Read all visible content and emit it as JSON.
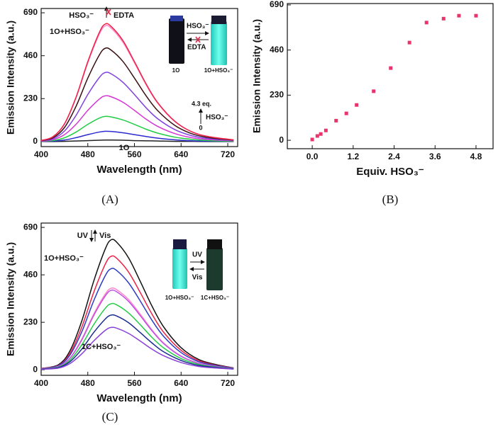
{
  "chart_data": [
    {
      "type": "line",
      "panel_label": "(A)",
      "xlabel": "Wavelength (nm)",
      "ylabel": "Emission Intensity (a.u.)",
      "xlim": [
        400,
        737
      ],
      "ylim": [
        -27,
        713
      ],
      "xticks": [
        400,
        480,
        560,
        640,
        720
      ],
      "yticks": [
        0,
        230,
        460,
        690
      ],
      "x": [
        400,
        420,
        440,
        460,
        480,
        500,
        510,
        520,
        540,
        560,
        580,
        600,
        630,
        660,
        690,
        730
      ],
      "series": [
        {
          "color": "#222222",
          "values": [
            0,
            0,
            1,
            3,
            5,
            7,
            8,
            8,
            7,
            5,
            4,
            3,
            1,
            1,
            0,
            0
          ]
        },
        {
          "color": "#2b2bd0",
          "values": [
            1,
            2,
            8,
            21,
            37,
            51,
            55,
            54,
            47,
            37,
            27,
            18,
            9,
            4,
            2,
            1
          ]
        },
        {
          "color": "#22cc44",
          "values": [
            1,
            5,
            20,
            51,
            92,
            126,
            135,
            132,
            116,
            92,
            66,
            45,
            23,
            11,
            5,
            2
          ]
        },
        {
          "color": "#d535d5",
          "values": [
            2,
            10,
            37,
            93,
            167,
            228,
            245,
            240,
            211,
            167,
            120,
            81,
            42,
            20,
            10,
            4
          ]
        },
        {
          "color": "#8040e0",
          "values": [
            4,
            15,
            56,
            141,
            252,
            344,
            370,
            363,
            318,
            252,
            181,
            122,
            63,
            30,
            15,
            6
          ]
        },
        {
          "color": "#3a1010",
          "values": [
            5,
            20,
            75,
            190,
            340,
            465,
            500,
            490,
            430,
            340,
            245,
            165,
            85,
            40,
            20,
            8
          ]
        },
        {
          "color": "#ff88cc",
          "values": [
            6,
            25,
            93,
            236,
            422,
            577,
            620,
            608,
            533,
            422,
            304,
            205,
            105,
            50,
            25,
            9
          ]
        },
        {
          "color": "#ee2244",
          "values": [
            6,
            25,
            95,
            239,
            428,
            586,
            630,
            617,
            542,
            428,
            309,
            208,
            107,
            50,
            25,
            9
          ]
        }
      ],
      "annotations": [
        "HSO₃⁻",
        "EDTA",
        "1O+HSO₃⁻",
        "4.3 eq.",
        "HSO₃⁻",
        "0",
        "1O",
        "HSO₃⁻",
        "EDTA",
        "1O",
        "1O+HSO₃⁻"
      ]
    },
    {
      "type": "scatter",
      "panel_label": "(B)",
      "xlabel": "Equiv. HSO₃⁻",
      "ylabel": "Emission Intensity (a.u.)",
      "xlim": [
        -0.73,
        5.3
      ],
      "ylim": [
        -43,
        697
      ],
      "xticks": [
        {
          "value": 0,
          "label": "0.0"
        },
        1.2,
        2.4,
        3.6,
        4.8
      ],
      "yticks": [
        0,
        230,
        460,
        690
      ],
      "color": "#e8336b",
      "x": [
        0,
        0.15,
        0.25,
        0.4,
        0.7,
        1.0,
        1.3,
        1.8,
        2.3,
        2.85,
        3.35,
        3.85,
        4.3,
        4.8
      ],
      "values": [
        4,
        22,
        32,
        50,
        100,
        137,
        180,
        250,
        368,
        498,
        600,
        620,
        635,
        635
      ]
    },
    {
      "type": "line",
      "panel_label": "(C)",
      "xlabel": "Wavelength (nm)",
      "ylabel": "Emission Intensity (a.u.)",
      "xlim": [
        400,
        737
      ],
      "ylim": [
        -27,
        711
      ],
      "xticks": [
        400,
        480,
        560,
        640,
        720
      ],
      "yticks": [
        0,
        230,
        460,
        690
      ],
      "x": [
        400,
        430,
        450,
        470,
        490,
        510,
        520,
        530,
        550,
        570,
        590,
        610,
        640,
        670,
        700,
        730
      ],
      "series": [
        {
          "color": "#111111",
          "values": [
            6,
            25,
            95,
            239,
            428,
            586,
            630,
            617,
            542,
            428,
            309,
            208,
            107,
            50,
            25,
            9
          ]
        },
        {
          "color": "#ee2244",
          "values": [
            6,
            22,
            83,
            209,
            374,
            512,
            550,
            539,
            473,
            374,
            270,
            182,
            94,
            44,
            22,
            8
          ]
        },
        {
          "color": "#2b3cc8",
          "values": [
            5,
            20,
            74,
            186,
            333,
            456,
            490,
            480,
            421,
            333,
            240,
            162,
            83,
            39,
            20,
            7
          ]
        },
        {
          "color": "#ff88cc",
          "values": [
            4,
            16,
            59,
            150,
            269,
            367,
            395,
            387,
            340,
            269,
            194,
            130,
            67,
            32,
            16,
            6
          ]
        },
        {
          "color": "#c050e0",
          "values": [
            4,
            15,
            58,
            146,
            262,
            358,
            385,
            377,
            331,
            262,
            189,
            127,
            65,
            31,
            15,
            6
          ]
        },
        {
          "color": "#22cc44",
          "values": [
            3,
            13,
            48,
            122,
            218,
            298,
            320,
            314,
            275,
            218,
            157,
            106,
            54,
            26,
            13,
            5
          ]
        },
        {
          "color": "#1a2a90",
          "values": [
            3,
            11,
            40,
            101,
            180,
            246,
            265,
            260,
            228,
            180,
            130,
            87,
            45,
            21,
            11,
            4
          ]
        },
        {
          "color": "#8a40d8",
          "values": [
            2,
            8,
            31,
            78,
            139,
            191,
            205,
            201,
            176,
            139,
            100,
            68,
            35,
            16,
            8,
            3
          ]
        }
      ],
      "annotations": [
        "UV",
        "Vis",
        "1O+HSO₃⁻",
        "1C+HSO₃⁻",
        "UV",
        "Vis",
        "1O+HSO₃⁻",
        "1C+HSO₃⁻"
      ]
    }
  ]
}
